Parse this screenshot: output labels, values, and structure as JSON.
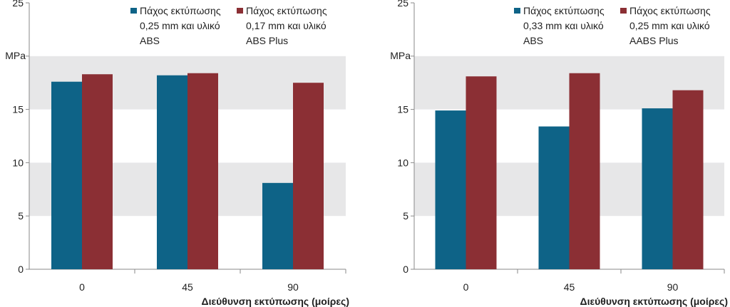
{
  "chart_data": [
    {
      "type": "bar",
      "categories": [
        "0",
        "45",
        "90"
      ],
      "series": [
        {
          "name": "Πάχος εκτύπωσης 0,25 mm και υλικό ABS",
          "legend_lines": [
            "Πάχος εκτύπωσης",
            "0,25 mm και υλικό",
            "ABS"
          ],
          "values": [
            17.6,
            18.2,
            8.1
          ]
        },
        {
          "name": "Πάχος εκτύπωσης 0,17 mm και υλικό ABS Plus",
          "legend_lines": [
            "Πάχος εκτύπωσης",
            "0,17 mm και υλικό",
            "ABS Plus"
          ],
          "values": [
            18.3,
            18.4,
            17.5
          ]
        }
      ],
      "title": "",
      "xlabel": "Διεύθυνση εκτύπωσης (μοίρες)",
      "ylabel": "MPa",
      "ylim": [
        0,
        25
      ],
      "yticks": [
        0,
        5,
        10,
        15,
        20,
        25
      ],
      "ytick_labels": [
        "0",
        "5",
        "10",
        "15",
        "",
        "25"
      ],
      "grid": "alternating horizontal bands",
      "legend_position": "top"
    },
    {
      "type": "bar",
      "categories": [
        "0",
        "45",
        "90"
      ],
      "series": [
        {
          "name": "Πάχος εκτύπωσης 0,33 mm και υλικό ABS",
          "legend_lines": [
            "Πάχος εκτύπωσης",
            "0,33 mm και υλικό",
            "ABS"
          ],
          "values": [
            14.9,
            13.4,
            15.1
          ]
        },
        {
          "name": "Πάχος εκτύπωσης 0,25 mm και υλικό AABS Plus",
          "legend_lines": [
            "Πάχος εκτύπωσης",
            "0,25 mm και υλικό",
            "AABS Plus"
          ],
          "values": [
            18.1,
            18.4,
            16.8
          ]
        }
      ],
      "title": "",
      "xlabel": "Διεύθυνση εκτύπωσης (μοίρες)",
      "ylabel": "MPa",
      "ylim": [
        0,
        25
      ],
      "yticks": [
        0,
        5,
        10,
        15,
        20,
        25
      ],
      "ytick_labels": [
        "0",
        "5",
        "10",
        "15",
        "",
        "25"
      ],
      "grid": "alternating horizontal bands",
      "legend_position": "top"
    }
  ],
  "colors": {
    "series_1": "#0e6387",
    "series_2": "#8b2f34",
    "band": "#e7e7e8",
    "axis": "#8a8a8a"
  }
}
